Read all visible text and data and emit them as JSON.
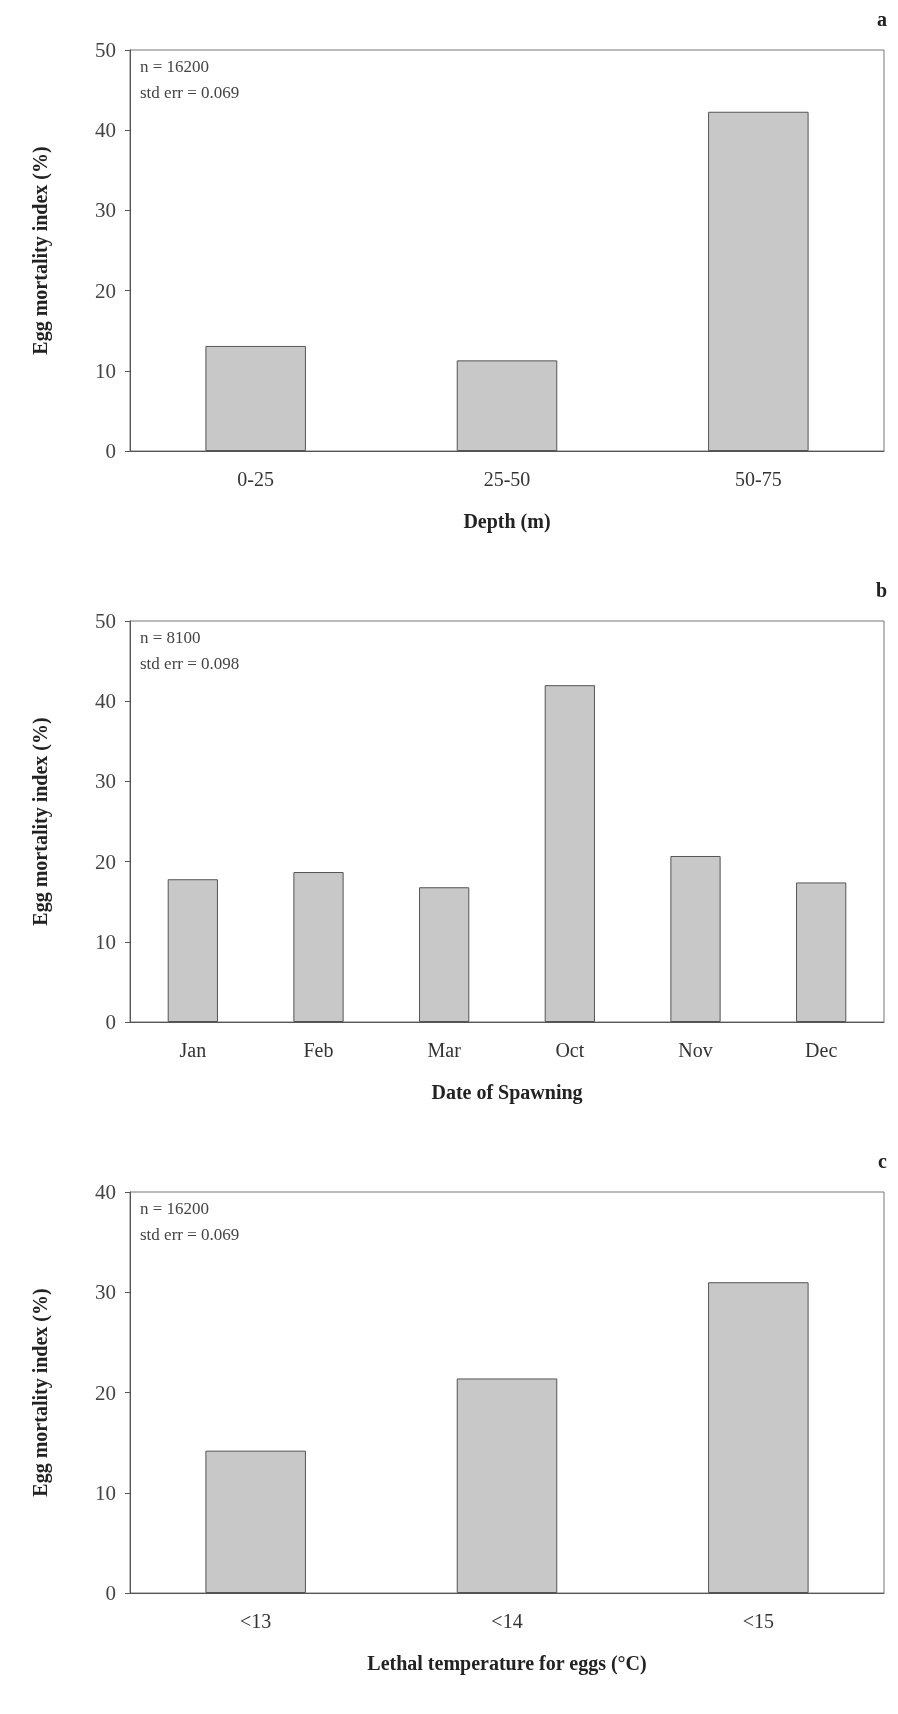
{
  "chart_data": [
    {
      "type": "bar",
      "title": "a",
      "xlabel": "Depth (m)",
      "ylabel": "Egg mortality index (%)",
      "categories": [
        "0-25",
        "25-50",
        "50-75"
      ],
      "values": [
        13.1,
        11.3,
        42.3
      ],
      "color": "#c8c8c8",
      "ylim": [
        0,
        50
      ],
      "yticks": [
        0,
        10,
        20,
        30,
        40,
        50
      ],
      "grid": false,
      "annotations": [
        "n = 16200",
        "std err = 0.069"
      ]
    },
    {
      "type": "bar",
      "title": "b",
      "xlabel": "Date of Spawning",
      "ylabel": "Egg mortality index (%)",
      "categories": [
        "Jan",
        "Feb",
        "Mar",
        "Oct",
        "Nov",
        "Dec"
      ],
      "values": [
        17.8,
        18.7,
        16.8,
        42.0,
        20.7,
        17.4
      ],
      "color": "#c8c8c8",
      "ylim": [
        0,
        50
      ],
      "yticks": [
        0,
        10,
        20,
        30,
        40,
        50
      ],
      "grid": false,
      "annotations": [
        "n = 8100",
        "std err = 0.098"
      ]
    },
    {
      "type": "bar",
      "title": "c",
      "xlabel": "Lethal temperature for eggs (°C)",
      "ylabel": "Egg mortality index (%)",
      "categories": [
        "<13",
        "<14",
        "<15"
      ],
      "values": [
        14.2,
        21.4,
        31.0
      ],
      "color": "#c8c8c8",
      "ylim": [
        0,
        40
      ],
      "yticks": [
        0,
        10,
        20,
        30,
        40
      ],
      "grid": false,
      "annotations": [
        "n = 16200",
        "std err = 0.069"
      ]
    }
  ]
}
